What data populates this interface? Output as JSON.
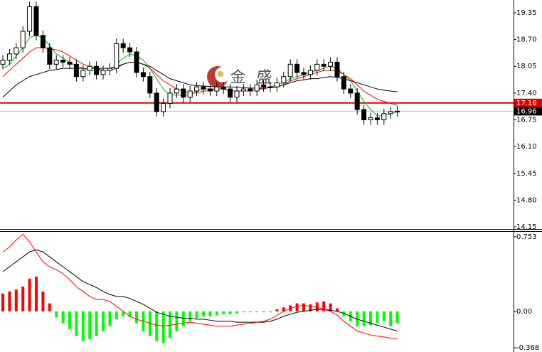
{
  "chart_data": [
    {
      "type": "candlestick",
      "watermark": "金 盛",
      "ylim": [
        14.1,
        19.66
      ],
      "yticks": [
        19.35,
        {
          "value": 18.7,
          "label": "18.70"
        },
        18.05,
        {
          "value": 17.4,
          "label": "17.40"
        },
        16.75,
        {
          "value": 16.1,
          "label": "16.10"
        },
        15.45,
        {
          "value": 14.8,
          "label": "14.80"
        },
        14.15
      ],
      "up_color": "#ffffff",
      "down_color": "#000000",
      "open": [
        18.1,
        18.2,
        18.35,
        18.5,
        18.9,
        19.5,
        18.8,
        18.5,
        18.1,
        18.2,
        18.15,
        18.1,
        17.8,
        17.95,
        18.05,
        17.85,
        17.95,
        18.0,
        18.6,
        18.5,
        18.4,
        17.9,
        17.8,
        17.4,
        16.95,
        17.15,
        17.4,
        17.5,
        17.3,
        17.45,
        17.55,
        17.5,
        17.45,
        17.55,
        17.5,
        17.3,
        17.45,
        17.5,
        17.45,
        17.6,
        17.55,
        17.55,
        17.65,
        17.8,
        18.1,
        17.9,
        17.85,
        17.95,
        18.1,
        18.05,
        18.15,
        17.8,
        17.5,
        17.4,
        17.0,
        16.75,
        16.8,
        16.75,
        16.9,
        16.95
      ],
      "high": [
        18.32,
        18.47,
        18.62,
        19.02,
        19.62,
        19.62,
        18.92,
        18.62,
        18.32,
        18.32,
        18.27,
        18.22,
        18.07,
        18.17,
        18.17,
        18.07,
        18.12,
        18.72,
        18.72,
        18.62,
        18.52,
        18.02,
        17.92,
        17.52,
        17.27,
        17.52,
        17.62,
        17.62,
        17.57,
        17.67,
        17.67,
        17.62,
        17.67,
        17.67,
        17.62,
        17.57,
        17.62,
        17.62,
        17.72,
        17.72,
        17.67,
        17.77,
        17.92,
        18.22,
        18.22,
        18.02,
        18.07,
        18.22,
        18.22,
        18.27,
        18.27,
        17.92,
        17.62,
        17.52,
        17.12,
        16.92,
        16.92,
        17.02,
        17.07,
        17.08
      ],
      "low": [
        17.98,
        18.08,
        18.23,
        18.38,
        18.78,
        18.68,
        18.38,
        17.98,
        17.98,
        18.03,
        17.98,
        17.68,
        17.68,
        17.83,
        17.73,
        17.73,
        17.83,
        17.88,
        18.38,
        18.28,
        17.78,
        17.68,
        17.28,
        16.83,
        16.83,
        17.03,
        17.28,
        17.18,
        17.18,
        17.33,
        17.38,
        17.33,
        17.33,
        17.38,
        17.18,
        17.18,
        17.33,
        17.33,
        17.33,
        17.43,
        17.43,
        17.43,
        17.53,
        17.68,
        17.78,
        17.73,
        17.73,
        17.83,
        17.93,
        17.93,
        17.68,
        17.38,
        17.28,
        16.88,
        16.63,
        16.63,
        16.63,
        16.63,
        16.78,
        16.83
      ],
      "close": [
        18.2,
        18.35,
        18.5,
        18.9,
        19.5,
        18.8,
        18.5,
        18.1,
        18.2,
        18.15,
        18.1,
        17.8,
        17.95,
        18.05,
        17.85,
        17.95,
        18.0,
        18.6,
        18.5,
        18.4,
        17.9,
        17.8,
        17.4,
        16.95,
        17.15,
        17.4,
        17.5,
        17.3,
        17.45,
        17.55,
        17.5,
        17.45,
        17.55,
        17.5,
        17.3,
        17.45,
        17.5,
        17.45,
        17.6,
        17.55,
        17.55,
        17.65,
        17.8,
        18.1,
        17.9,
        17.85,
        17.95,
        18.1,
        18.05,
        18.15,
        17.8,
        17.5,
        17.4,
        17.0,
        16.75,
        16.8,
        16.75,
        16.9,
        16.95,
        16.96
      ],
      "series": [
        {
          "color": "#00c000",
          "values": [
            18.0,
            18.1,
            18.3,
            18.5,
            18.75,
            18.8,
            18.75,
            18.55,
            18.35,
            18.25,
            18.15,
            18.05,
            18.0,
            17.95,
            17.95,
            17.95,
            17.95,
            18.1,
            18.25,
            18.35,
            18.3,
            18.2,
            18.0,
            17.75,
            17.5,
            17.35,
            17.35,
            17.35,
            17.35,
            17.45,
            17.5,
            17.5,
            17.5,
            17.5,
            17.45,
            17.45,
            17.45,
            17.45,
            17.5,
            17.5,
            17.55,
            17.6,
            17.65,
            17.75,
            17.8,
            17.85,
            17.9,
            17.95,
            18.0,
            18.05,
            18.0,
            17.85,
            17.7,
            17.45,
            17.2,
            17.0,
            16.85,
            16.85,
            16.9,
            16.95
          ]
        },
        {
          "color": "#ff0000",
          "values": [
            17.8,
            17.95,
            18.1,
            18.25,
            18.4,
            18.5,
            18.5,
            18.48,
            18.45,
            18.4,
            18.3,
            18.2,
            18.1,
            18.05,
            18.0,
            17.95,
            17.95,
            18.0,
            18.1,
            18.15,
            18.15,
            18.1,
            18.0,
            17.85,
            17.7,
            17.6,
            17.5,
            17.45,
            17.4,
            17.4,
            17.45,
            17.45,
            17.5,
            17.5,
            17.45,
            17.45,
            17.45,
            17.45,
            17.5,
            17.5,
            17.55,
            17.55,
            17.6,
            17.7,
            17.75,
            17.8,
            17.85,
            17.9,
            17.95,
            17.95,
            17.95,
            17.85,
            17.75,
            17.6,
            17.45,
            17.35,
            17.25,
            17.2,
            17.15,
            17.1
          ]
        },
        {
          "color": "#000000",
          "values": [
            17.3,
            17.45,
            17.6,
            17.7,
            17.8,
            17.85,
            17.9,
            17.95,
            17.97,
            18.0,
            18.0,
            18.0,
            18.0,
            18.0,
            18.0,
            18.0,
            18.0,
            18.05,
            18.1,
            18.15,
            18.15,
            18.1,
            18.05,
            17.95,
            17.85,
            17.75,
            17.7,
            17.65,
            17.6,
            17.58,
            17.57,
            17.56,
            17.55,
            17.55,
            17.55,
            17.54,
            17.53,
            17.52,
            17.52,
            17.52,
            17.53,
            17.55,
            17.6,
            17.65,
            17.7,
            17.72,
            17.75,
            17.75,
            17.78,
            17.8,
            17.78,
            17.75,
            17.7,
            17.65,
            17.6,
            17.55,
            17.5,
            17.47,
            17.45,
            17.43
          ]
        }
      ],
      "price_lines": [
        {
          "value": 17.16,
          "color": "#e00000",
          "label_color": "#e00000"
        },
        {
          "value": 16.96,
          "color": "#c0c0c0",
          "label_color": "#000000"
        }
      ]
    },
    {
      "type": "macd",
      "ylim": [
        -0.411,
        0.81
      ],
      "yticks": [
        0.753,
        {
          "value": 0,
          "label": "0.00"
        },
        -0.368
      ],
      "positive_color": "#ff0000",
      "negative_color": "#00ff00",
      "values": [
        0.18,
        0.2,
        0.22,
        0.25,
        0.33,
        0.35,
        0.2,
        0.08,
        -0.06,
        -0.12,
        -0.18,
        -0.25,
        -0.3,
        -0.28,
        -0.25,
        -0.2,
        -0.15,
        -0.08,
        -0.05,
        -0.06,
        -0.12,
        -0.2,
        -0.25,
        -0.3,
        -0.32,
        -0.27,
        -0.2,
        -0.15,
        -0.1,
        -0.07,
        -0.05,
        -0.05,
        -0.04,
        -0.03,
        -0.03,
        -0.02,
        -0.01,
        -0.01,
        -0.01,
        -0.01,
        -0.01,
        0.02,
        0.04,
        0.06,
        0.08,
        0.08,
        0.07,
        0.09,
        0.1,
        0.08,
        0.03,
        -0.05,
        -0.1,
        -0.15,
        -0.15,
        -0.14,
        -0.12,
        -0.1,
        -0.15,
        -0.12
      ],
      "series": [
        {
          "color": "#000000",
          "values": [
            0.4,
            0.45,
            0.5,
            0.55,
            0.6,
            0.62,
            0.6,
            0.55,
            0.5,
            0.45,
            0.4,
            0.35,
            0.3,
            0.27,
            0.24,
            0.2,
            0.17,
            0.15,
            0.15,
            0.13,
            0.1,
            0.07,
            0.03,
            -0.01,
            -0.03,
            -0.05,
            -0.06,
            -0.07,
            -0.07,
            -0.08,
            -0.08,
            -0.09,
            -0.1,
            -0.1,
            -0.1,
            -0.11,
            -0.11,
            -0.11,
            -0.11,
            -0.11,
            -0.1,
            -0.08,
            -0.05,
            -0.03,
            -0.01,
            0.0,
            0.01,
            0.02,
            0.02,
            0.01,
            0.0,
            -0.02,
            -0.05,
            -0.08,
            -0.1,
            -0.12,
            -0.14,
            -0.16,
            -0.18,
            -0.2
          ]
        },
        {
          "color": "#ff0000",
          "values": [
            0.6,
            0.65,
            0.72,
            0.78,
            0.7,
            0.6,
            0.5,
            0.45,
            0.42,
            0.38,
            0.32,
            0.25,
            0.2,
            0.15,
            0.12,
            0.12,
            0.1,
            0.05,
            0.0,
            -0.05,
            -0.08,
            -0.1,
            -0.12,
            -0.14,
            -0.15,
            -0.14,
            -0.13,
            -0.12,
            -0.11,
            -0.12,
            -0.13,
            -0.14,
            -0.15,
            -0.15,
            -0.15,
            -0.14,
            -0.13,
            -0.12,
            -0.11,
            -0.1,
            -0.08,
            -0.04,
            0.0,
            0.03,
            0.05,
            0.06,
            0.05,
            0.04,
            0.02,
            0.0,
            -0.04,
            -0.1,
            -0.15,
            -0.2,
            -0.22,
            -0.24,
            -0.25,
            -0.26,
            -0.27,
            -0.28
          ]
        }
      ]
    }
  ]
}
